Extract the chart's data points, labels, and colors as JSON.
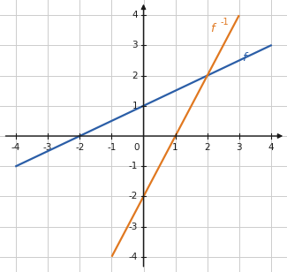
{
  "xlim": [
    -4.5,
    4.5
  ],
  "ylim": [
    -4.5,
    4.5
  ],
  "xlim_data": [
    -4,
    4
  ],
  "ylim_data": [
    -4,
    4
  ],
  "xticks": [
    -4,
    -3,
    -2,
    -1,
    1,
    2,
    3,
    4
  ],
  "yticks": [
    -4,
    -3,
    -2,
    -1,
    1,
    2,
    3,
    4
  ],
  "f_slope": 0.5,
  "f_intercept": 1.0,
  "f_color": "#2b5ea7",
  "f_label": "f",
  "finv_slope": 2.0,
  "finv_intercept": -2.0,
  "finv_color": "#e07820",
  "finv_label": "f",
  "finv_exp": "-1",
  "grid_color": "#cccccc",
  "axis_color": "#1a1a1a",
  "background_color": "#f0f0f0",
  "plot_bg": "#ffffff",
  "figsize": [
    3.25,
    3.08
  ],
  "dpi": 100
}
